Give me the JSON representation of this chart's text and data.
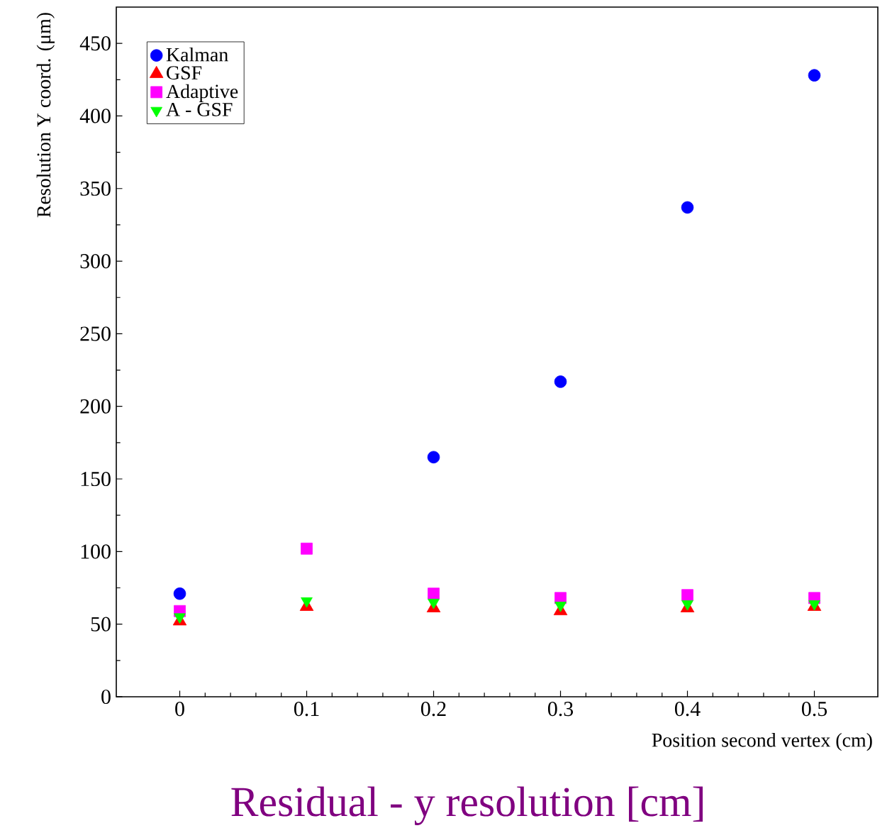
{
  "chart_data": {
    "type": "scatter",
    "xlabel": "Position second vertex (cm)",
    "ylabel": "Resolution Y coord. (μm)",
    "x": [
      0,
      0.1,
      0.2,
      0.3,
      0.4,
      0.5
    ],
    "series": [
      {
        "name": "Kalman",
        "color": "#0000ff",
        "marker": "circle",
        "values": [
          71,
          null,
          165,
          217,
          337,
          428
        ]
      },
      {
        "name": "GSF",
        "color": "#ff0000",
        "marker": "triangle",
        "values": [
          52,
          62,
          61,
          59,
          61,
          62
        ]
      },
      {
        "name": "Adaptive",
        "color": "#ff00ff",
        "marker": "square",
        "values": [
          59,
          102,
          71,
          68,
          70,
          68
        ]
      },
      {
        "name": "A - GSF",
        "color": "#00ff00",
        "marker": "triangle-down",
        "values": [
          55,
          66,
          65,
          63,
          64,
          64
        ]
      }
    ],
    "xlim": [
      -0.05,
      0.55
    ],
    "ylim": [
      0,
      475
    ],
    "xticks": [
      0,
      0.1,
      0.2,
      0.3,
      0.4,
      0.5
    ],
    "yticks": [
      0,
      50,
      100,
      150,
      200,
      250,
      300,
      350,
      400,
      450
    ],
    "legend": "top left",
    "grid": false,
    "annotations": [
      "Residual - y resolution [cm]"
    ]
  }
}
